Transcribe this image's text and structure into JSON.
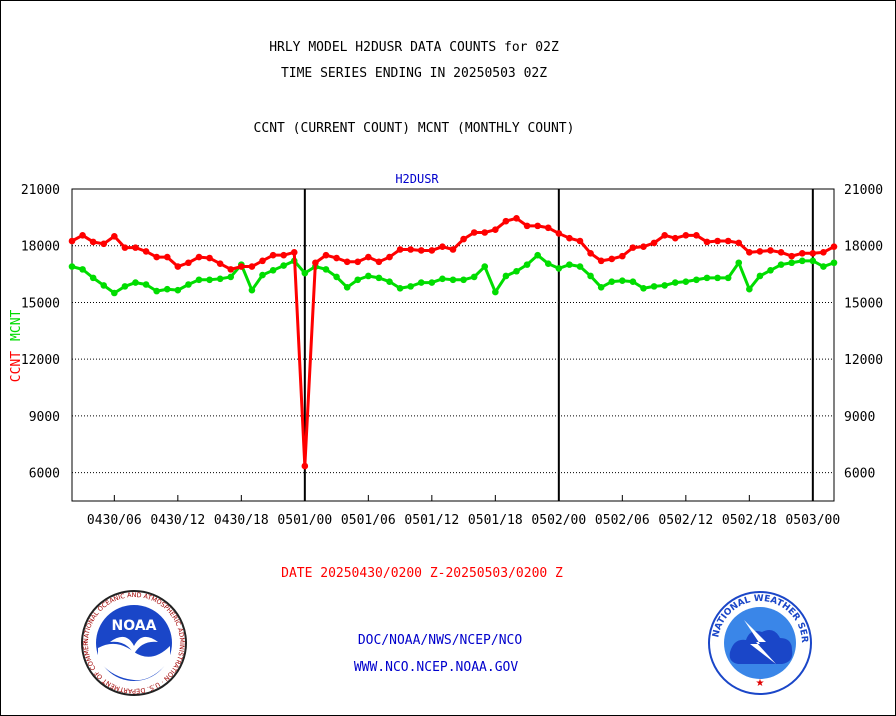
{
  "titles": {
    "line1": "HRLY MODEL H2DUSR DATA COUNTS for 02Z",
    "line2": "TIME SERIES ENDING IN 20250503 02Z",
    "line3": "CCNT (CURRENT COUNT) MCNT (MONTHLY COUNT)"
  },
  "date_range": "DATE 20250430/0200 Z-20250503/0200 Z",
  "footer": {
    "line1": "DOC/NOAA/NWS/NCEP/NCO",
    "line2": "WWW.NCO.NCEP.NOAA.GOV"
  },
  "logos": {
    "left_text": "NOAA",
    "left_ring": "NATIONAL OCEANIC AND ATMOSPHERIC ADMINISTRATION · U.S. DEPARTMENT OF COMMERCE",
    "right_ring": "NATIONAL WEATHER SERVICE"
  },
  "colors": {
    "ccnt": "#ff0000",
    "mcnt": "#00dd00",
    "axis": "#000000",
    "label_blue": "#0000cc"
  },
  "chart_data": {
    "type": "line",
    "title": "H2DUSR",
    "ylabel_parts": [
      "CCNT",
      "MCNT"
    ],
    "ylim": [
      4500,
      21000
    ],
    "yticks": [
      6000,
      9000,
      12000,
      15000,
      18000,
      21000
    ],
    "ytick_labels": [
      "6000",
      "9000",
      "12000",
      "15000",
      "18000",
      "21000"
    ],
    "x_range_hours": [
      0,
      72
    ],
    "xticks": [
      4,
      10,
      16,
      22,
      28,
      34,
      40,
      46,
      52,
      58,
      64,
      70
    ],
    "xtick_labels": [
      "0430/06",
      "0430/12",
      "0430/18",
      "0501/00",
      "0501/06",
      "0501/12",
      "0501/18",
      "0502/00",
      "0502/06",
      "0502/12",
      "0502/18",
      "0503/00"
    ],
    "day_boundaries": [
      22,
      46,
      70
    ],
    "grid": "horizontal dotted",
    "series": [
      {
        "name": "CCNT",
        "values": [
          18250,
          18550,
          18200,
          18100,
          18500,
          17900,
          17900,
          17700,
          17400,
          17400,
          16900,
          17100,
          17400,
          17350,
          17050,
          16750,
          16900,
          16900,
          17200,
          17500,
          17500,
          17650,
          6350,
          17100,
          17500,
          17350,
          17150,
          17150,
          17400,
          17150,
          17400,
          17800,
          17800,
          17750,
          17750,
          17950,
          17800,
          18350,
          18700,
          18700,
          18850,
          19300,
          19450,
          19050,
          19050,
          18950,
          18650,
          18400,
          18250,
          17600,
          17200,
          17300,
          17450,
          17900,
          17950,
          18150,
          18550,
          18400,
          18550,
          18550,
          18200,
          18250,
          18250,
          18150,
          17650,
          17700,
          17750,
          17650,
          17450,
          17600,
          17600,
          17650,
          17950
        ]
      },
      {
        "name": "MCNT",
        "values": [
          16900,
          16750,
          16300,
          15900,
          15500,
          15850,
          16050,
          15950,
          15600,
          15700,
          15650,
          15950,
          16200,
          16200,
          16250,
          16350,
          17000,
          15650,
          16450,
          16700,
          16950,
          17200,
          16550,
          16900,
          16750,
          16350,
          15800,
          16200,
          16400,
          16300,
          16100,
          15750,
          15850,
          16050,
          16050,
          16250,
          16200,
          16200,
          16350,
          16900,
          15550,
          16400,
          16650,
          17000,
          17500,
          17050,
          16800,
          17000,
          16900,
          16400,
          15800,
          16100,
          16150,
          16100,
          15750,
          15850,
          15900,
          16050,
          16100,
          16200,
          16300,
          16300,
          16300,
          17100,
          15700,
          16400,
          16700,
          17000,
          17100,
          17200,
          17200,
          16900,
          17100
        ]
      }
    ]
  }
}
